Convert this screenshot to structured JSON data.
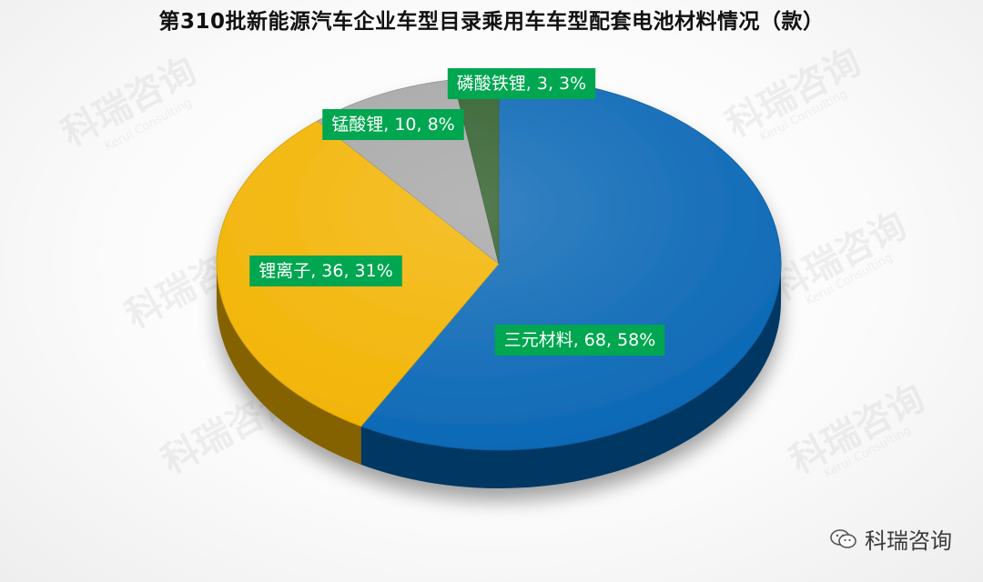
{
  "watermark": {
    "logo_text": "科瑞咨询",
    "sub_text": "Kerui Consulting"
  },
  "credit": {
    "icon": "wechat-icon",
    "text": "科瑞咨询"
  },
  "chart_data": {
    "type": "pie",
    "title": "第310批新能源汽车企业车型目录乘用车车型配套电池材料情况（款）",
    "slices": [
      {
        "name": "三元材料",
        "value": 68,
        "percent": 58,
        "label": "三元材料, 68, 58%",
        "color": "#0a67b5"
      },
      {
        "name": "锂离子",
        "value": 36,
        "percent": 31,
        "label": "锂离子, 36, 31%",
        "color": "#f2b300"
      },
      {
        "name": "锰酸锂",
        "value": 10,
        "percent": 8,
        "label": "锰酸锂, 10, 8%",
        "color": "#a6a6a6"
      },
      {
        "name": "磷酸铁锂",
        "value": 3,
        "percent": 3,
        "label": "磷酸铁锂, 3, 3%",
        "color": "#2f5d2a"
      }
    ],
    "label_style": {
      "background": "#00a650",
      "text_color": "#ffffff"
    }
  }
}
